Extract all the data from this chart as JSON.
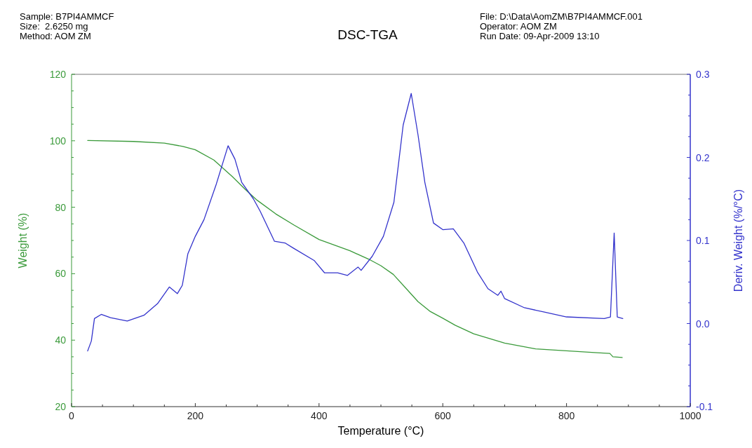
{
  "chart_data": {
    "type": "line",
    "title": "DSC-TGA",
    "annotations": [
      "Sample: B7PI4AMMCF",
      "Size:  2.6250 mg",
      "Method: AOM ZM",
      "File: D:\\Data\\AomZM\\B7PI4AMMCF.001",
      "Operator: AOM ZM",
      "Run Date: 09-Apr-2009 13:10"
    ],
    "xlabel": "Temperature (°C)",
    "ylabel": "Weight (%)",
    "y2label": "Deriv. Weight (%/°C)",
    "xlim": [
      0,
      1000
    ],
    "ylim": [
      20,
      120
    ],
    "y2lim": [
      -0.1,
      0.3
    ],
    "xticks": [
      0,
      {
        "value": 50,
        "label": null
      },
      {
        "value": 100,
        "label": null
      },
      {
        "value": 150,
        "label": null
      },
      200,
      {
        "value": 250,
        "label": null
      },
      {
        "value": 300,
        "label": null
      },
      {
        "value": 350,
        "label": null
      },
      400,
      {
        "value": 450,
        "label": null
      },
      {
        "value": 500,
        "label": null
      },
      {
        "value": 550,
        "label": null
      },
      600,
      {
        "value": 650,
        "label": null
      },
      {
        "value": 700,
        "label": null
      },
      {
        "value": 750,
        "label": null
      },
      800,
      {
        "value": 850,
        "label": null
      },
      {
        "value": 900,
        "label": null
      },
      {
        "value": 950,
        "label": null
      },
      1000
    ],
    "yticks": [
      20,
      {
        "value": 25,
        "label": null
      },
      {
        "value": 30,
        "label": null
      },
      {
        "value": 35,
        "label": null
      },
      40,
      {
        "value": 45,
        "label": null
      },
      {
        "value": 50,
        "label": null
      },
      {
        "value": 55,
        "label": null
      },
      60,
      {
        "value": 65,
        "label": null
      },
      {
        "value": 70,
        "label": null
      },
      {
        "value": 75,
        "label": null
      },
      80,
      {
        "value": 85,
        "label": null
      },
      {
        "value": 90,
        "label": null
      },
      {
        "value": 95,
        "label": null
      },
      100,
      {
        "value": 105,
        "label": null
      },
      {
        "value": 110,
        "label": null
      },
      {
        "value": 115,
        "label": null
      },
      120
    ],
    "y2ticks": [
      -0.1,
      {
        "value": -0.075,
        "label": null
      },
      {
        "value": -0.05,
        "label": null
      },
      {
        "value": -0.025,
        "label": null
      },
      {
        "value": 0,
        "label": "0.0"
      },
      {
        "value": 0.025,
        "label": null
      },
      {
        "value": 0.05,
        "label": null
      },
      {
        "value": 0.075,
        "label": null
      },
      0.1,
      {
        "value": 0.125,
        "label": null
      },
      {
        "value": 0.15,
        "label": null
      },
      {
        "value": 0.175,
        "label": null
      },
      0.2,
      {
        "value": 0.225,
        "label": null
      },
      {
        "value": 0.25,
        "label": null
      },
      {
        "value": 0.275,
        "label": null
      },
      0.3
    ],
    "grid": false,
    "series": [
      {
        "color": "#3a9a3a",
        "x": [
          26,
          100,
          150,
          180,
          200,
          230,
          260,
          280,
          300,
          330,
          360,
          400,
          450,
          480,
          500,
          520,
          540,
          560,
          580,
          600,
          620,
          650,
          700,
          750,
          800,
          850,
          870,
          875,
          890
        ],
        "values": [
          100.1,
          99.8,
          99.3,
          98.3,
          97.3,
          94.2,
          89.2,
          85.5,
          82.1,
          78,
          74.6,
          70.3,
          66.9,
          64.4,
          62.4,
          59.8,
          55.7,
          51.6,
          48.6,
          46.6,
          44.5,
          41.9,
          39.1,
          37.4,
          36.8,
          36.2,
          36.0,
          35.0,
          34.8
        ]
      },
      {
        "color": "#3333cc",
        "axis": "y2",
        "x": [
          26,
          32,
          37,
          48,
          63,
          90,
          117,
          139,
          158,
          171,
          179,
          188,
          200,
          214,
          234,
          253,
          264,
          275,
          294,
          305,
          328,
          345,
          358,
          392,
          409,
          430,
          446,
          463,
          468,
          486,
          504,
          521,
          536,
          549,
          560,
          571,
          585,
          600,
          617,
          634,
          656,
          673,
          689,
          694,
          700,
          732,
          763,
          800,
          861,
          871,
          877,
          882,
          891
        ],
        "values": [
          -0.033,
          -0.021,
          0.006,
          0.011,
          0.007,
          0.003,
          0.01,
          0.024,
          0.044,
          0.036,
          0.046,
          0.084,
          0.105,
          0.125,
          0.168,
          0.214,
          0.198,
          0.17,
          0.15,
          0.135,
          0.099,
          0.097,
          0.091,
          0.076,
          0.061,
          0.061,
          0.058,
          0.068,
          0.064,
          0.081,
          0.105,
          0.146,
          0.239,
          0.277,
          0.227,
          0.17,
          0.121,
          0.113,
          0.114,
          0.097,
          0.062,
          0.042,
          0.034,
          0.039,
          0.03,
          0.019,
          0.014,
          0.008,
          0.006,
          0.008,
          0.109,
          0.008,
          0.006
        ]
      }
    ]
  }
}
